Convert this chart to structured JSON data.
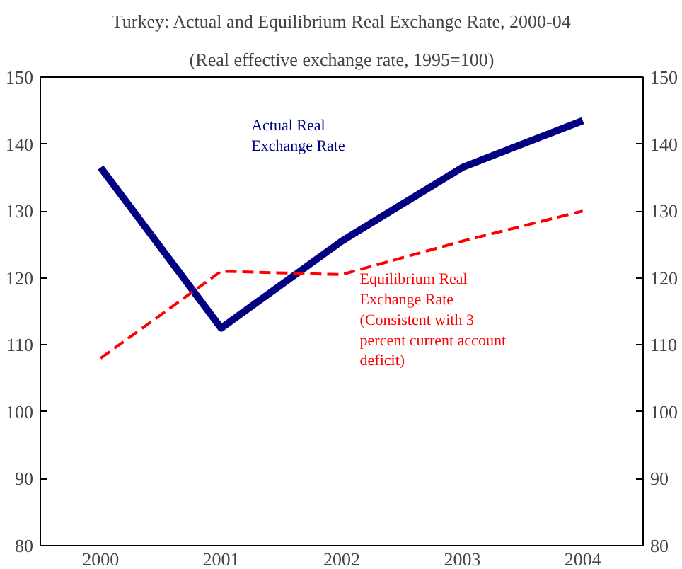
{
  "chart_data": {
    "type": "line",
    "title": "Turkey: Actual and Equilibrium Real Exchange Rate, 2000-04",
    "subtitle": "(Real effective exchange rate, 1995=100)",
    "categories": [
      "2000",
      "2001",
      "2002",
      "2003",
      "2004"
    ],
    "series": [
      {
        "name": "Actual Real Exchange Rate",
        "color": "#000080",
        "values": [
          136.5,
          112.5,
          125.5,
          136.5,
          143.5
        ],
        "line_style": "solid"
      },
      {
        "name": "Equilibrium Real Exchange Rate (Consistent with 3 percent current account deficit)",
        "color": "#ff0000",
        "values": [
          108,
          121,
          120.5,
          125.5,
          130
        ],
        "line_style": "dashed"
      }
    ],
    "ylim": [
      80,
      150
    ],
    "yticks": [
      80,
      90,
      100,
      110,
      120,
      130,
      140,
      150
    ],
    "y2lim": [
      80,
      150
    ],
    "y2ticks": [
      80,
      90,
      100,
      110,
      120,
      130,
      140,
      150
    ],
    "grid": false,
    "marker": "none"
  }
}
